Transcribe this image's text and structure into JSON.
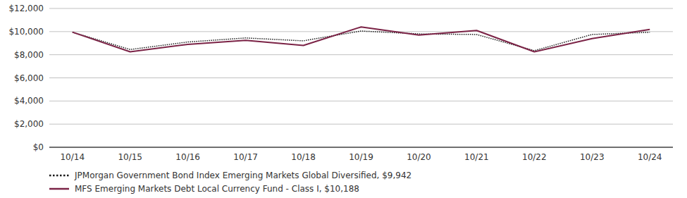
{
  "chart_data": {
    "type": "line",
    "categories": [
      "10/14",
      "10/15",
      "10/16",
      "10/17",
      "10/18",
      "10/19",
      "10/20",
      "10/21",
      "10/22",
      "10/23",
      "10/24"
    ],
    "series": [
      {
        "name": "JPMorgan Government Bond Index Emerging Markets Global Diversified, $9,942",
        "color": "#1a1a1a",
        "line_style": "dotted",
        "values": [
          9950,
          8450,
          9100,
          9450,
          9200,
          10050,
          9800,
          9750,
          8350,
          9750,
          9942
        ]
      },
      {
        "name": "MFS Emerging Markets Debt Local Currency Fund - Class I, $10,188",
        "color": "#7B2346",
        "line_style": "solid",
        "values": [
          9950,
          8250,
          8900,
          9250,
          8800,
          10400,
          9700,
          10100,
          8250,
          9400,
          10188
        ]
      }
    ],
    "ylim": [
      0,
      12000
    ],
    "yticks": [
      {
        "value": 0,
        "label": "$0"
      },
      {
        "value": 2000,
        "label": "$2,000"
      },
      {
        "value": 4000,
        "label": "$4,000"
      },
      {
        "value": 6000,
        "label": "$6,000"
      },
      {
        "value": 8000,
        "label": "$8,000"
      },
      {
        "value": 10000,
        "label": "$10,000"
      },
      {
        "value": 12000,
        "label": "$12,000"
      }
    ],
    "grid": true,
    "legend": "bottom",
    "background_color": "#ffffff",
    "grid_color": "#000000"
  }
}
